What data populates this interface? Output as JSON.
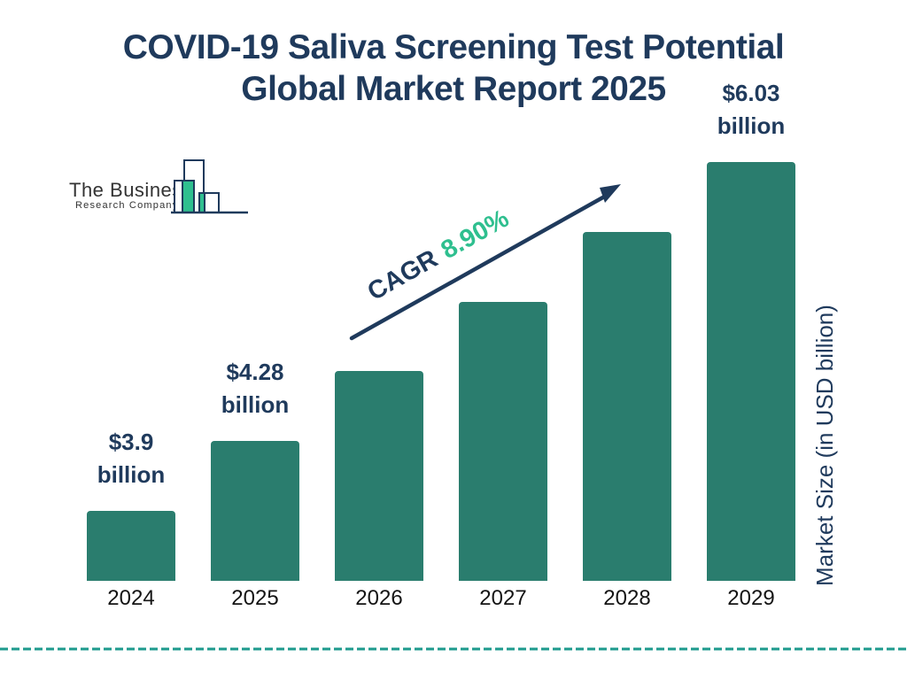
{
  "title": {
    "line1": "COVID-19 Saliva Screening Test Potential",
    "line2": "Global Market Report 2025"
  },
  "logo": {
    "name": "The Business",
    "subname": "Research Company"
  },
  "cagr": {
    "label": "CAGR",
    "value": "8.90%"
  },
  "y_axis_label": "Market Size (in USD billion)",
  "chart_data": {
    "type": "bar",
    "title": "COVID-19 Saliva Screening Test Potential Global Market Report 2025",
    "categories": [
      "2024",
      "2025",
      "2026",
      "2027",
      "2028",
      "2029"
    ],
    "values": [
      3.9,
      4.28,
      4.66,
      5.08,
      5.53,
      6.03
    ],
    "bar_labels": [
      {
        "line1": "$3.9",
        "line2": "billion"
      },
      {
        "line1": "$4.28",
        "line2": "billion"
      },
      null,
      null,
      null,
      {
        "line1": "$6.03",
        "line2": "billion"
      }
    ],
    "ylabel": "Market Size (in USD billion)",
    "xlabel": "",
    "cagr_annotation": "CAGR 8.90%",
    "grid": false,
    "legend": false
  },
  "colors": {
    "navy": "#1f3a5c",
    "bar_teal": "#2a7d6e",
    "accent_green": "#2fbf8f",
    "dash_teal": "#1e9a8d"
  }
}
